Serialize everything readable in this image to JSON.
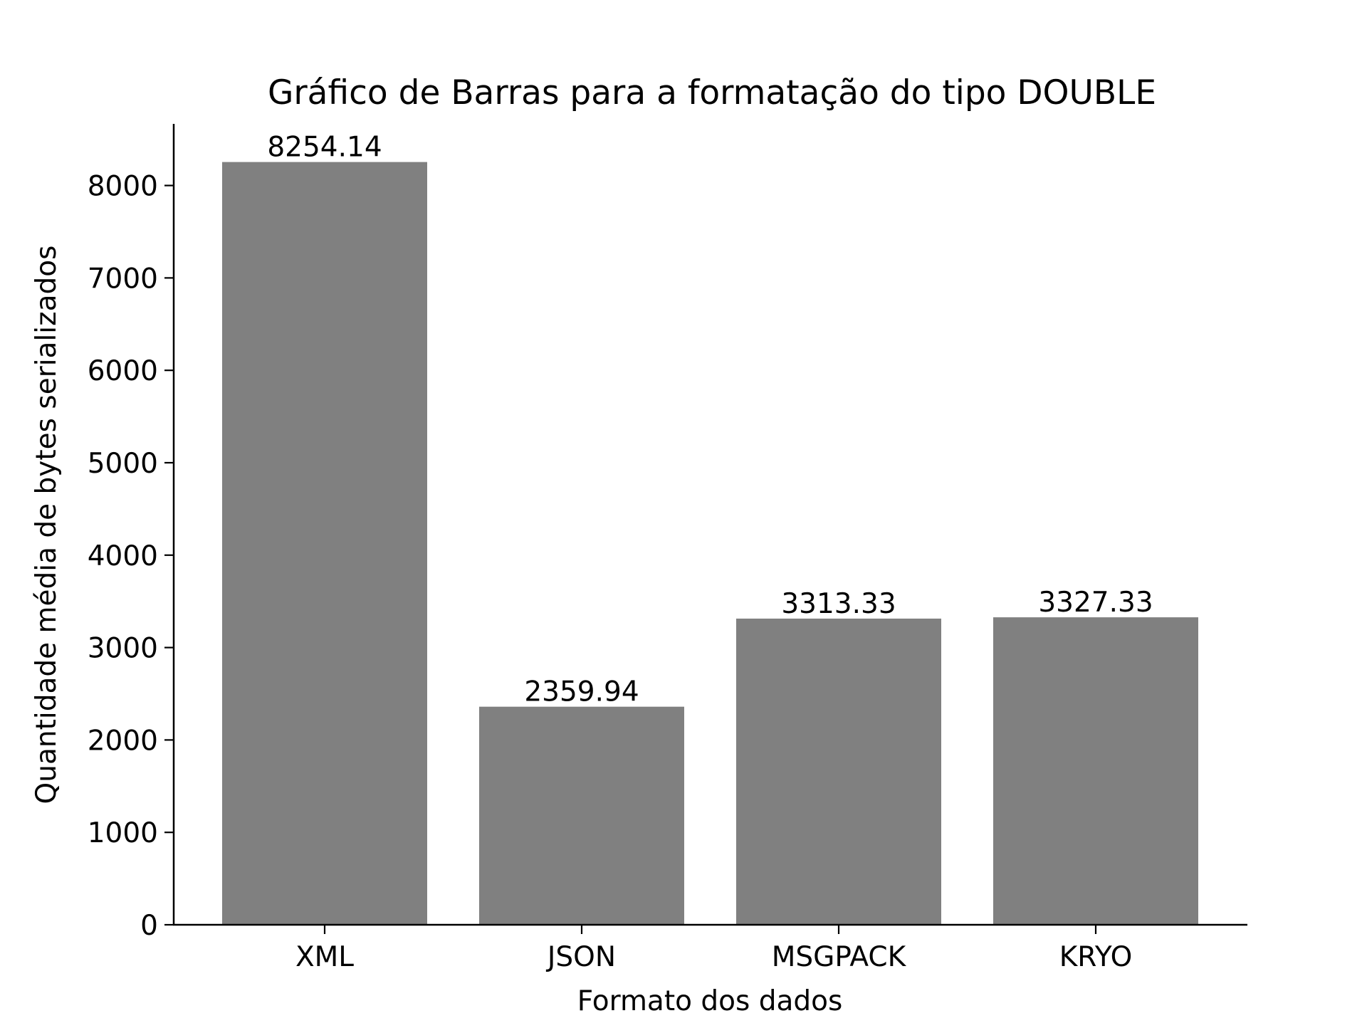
{
  "chart_data": {
    "type": "bar",
    "title": "Gráfico de Barras para a formatação do tipo DOUBLE",
    "xlabel": "Formato dos dados",
    "ylabel": "Quantidade média de bytes serializados",
    "categories": [
      "XML",
      "JSON",
      "MSGPACK",
      "KRYO"
    ],
    "values": [
      8254.14,
      2359.94,
      3313.33,
      3327.33
    ],
    "data_labels": [
      "8254.14",
      "2359.94",
      "3313.33",
      "3327.33"
    ],
    "ylim": [
      0,
      8667
    ],
    "yticks": [
      0,
      1000,
      2000,
      3000,
      4000,
      5000,
      6000,
      7000,
      8000
    ],
    "ytick_labels": [
      "0",
      "1000",
      "2000",
      "3000",
      "4000",
      "5000",
      "6000",
      "7000",
      "8000"
    ],
    "grid": false,
    "legend": "none",
    "colors": {
      "bar": "#808080",
      "axis": "#000000",
      "background": "#ffffff"
    }
  }
}
